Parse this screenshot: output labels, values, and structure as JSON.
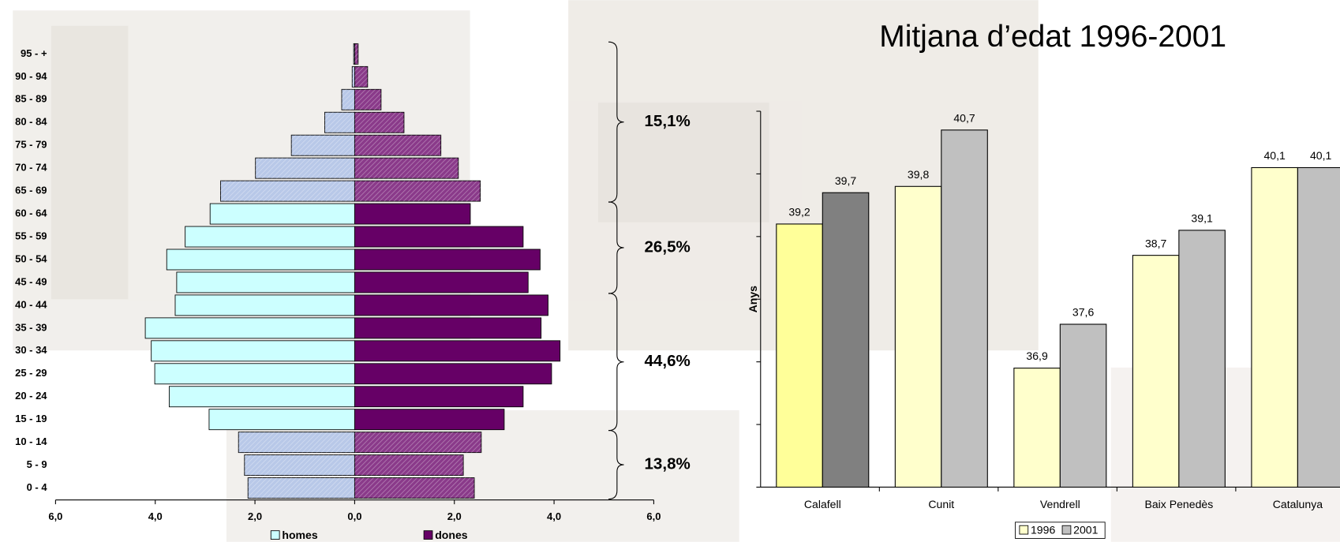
{
  "chart_data": [
    {
      "type": "pyramid",
      "categories": [
        "0 - 4",
        "5 - 9",
        "10 - 14",
        "15 - 19",
        "20 - 24",
        "25 - 29",
        "30 - 34",
        "35 - 39",
        "40 - 44",
        "45 - 49",
        "50 - 54",
        "55 - 59",
        "60 - 64",
        "65 - 69",
        "70 - 74",
        "75 - 79",
        "80 - 84",
        "85 - 89",
        "90 - 94",
        "95 - +"
      ],
      "series": [
        {
          "name": "homes",
          "color": "#ccffff",
          "colors": [
            "#b8c8e8",
            "#b8c8e8",
            "#b8c8e8",
            "#ccffff",
            "#ccffff",
            "#ccffff",
            "#ccffff",
            "#ccffff",
            "#ccffff",
            "#ccffff",
            "#ccffff",
            "#ccffff",
            "#ccffff",
            "#b8c8e8",
            "#b8c8e8",
            "#b8c8e8",
            "#b8c8e8",
            "#b8c8e8",
            "#b8c8e8",
            "#b8c8e8"
          ],
          "values": [
            -2.14,
            -2.21,
            -2.33,
            -2.92,
            -3.72,
            -4.01,
            -4.08,
            -4.2,
            -3.6,
            -3.57,
            -3.77,
            -3.4,
            -2.9,
            -2.69,
            -1.99,
            -1.27,
            -0.6,
            -0.26,
            -0.05,
            -0.02
          ]
        },
        {
          "name": "dones",
          "color": "#660066",
          "colors": [
            "#8a3a8a",
            "#8a3a8a",
            "#8a3a8a",
            "#660066",
            "#660066",
            "#660066",
            "#660066",
            "#660066",
            "#660066",
            "#660066",
            "#660066",
            "#660066",
            "#660066",
            "#8a3a8a",
            "#8a3a8a",
            "#8a3a8a",
            "#8a3a8a",
            "#8a3a8a",
            "#8a3a8a",
            "#8a3a8a"
          ],
          "values": [
            2.4,
            2.18,
            2.54,
            3.0,
            3.38,
            3.95,
            4.12,
            3.74,
            3.88,
            3.48,
            3.72,
            3.38,
            2.32,
            2.52,
            2.08,
            1.73,
            0.99,
            0.53,
            0.26,
            0.07
          ]
        }
      ],
      "xlim": [
        -6,
        6
      ],
      "xticks": [
        {
          "value": -6,
          "label": "6,0"
        },
        {
          "value": -4,
          "label": "4,0"
        },
        {
          "value": -2,
          "label": "2,0"
        },
        {
          "value": 0,
          "label": "0,0"
        },
        {
          "value": 2,
          "label": "2,0"
        },
        {
          "value": 4,
          "label": "4,0"
        },
        {
          "value": 6,
          "label": "6,0"
        }
      ],
      "annotations": [
        "15,1%",
        "26,5%",
        "44,6%",
        "13,8%"
      ]
    },
    {
      "type": "bar",
      "title": "Mitjana d’edat 1996-2001",
      "y_label": "Anys",
      "categories": [
        "Calafell",
        "Cunit",
        "Vendrell",
        "Baix Penedès",
        "Catalunya"
      ],
      "series": [
        {
          "name": "1996",
          "color": "#ffffcc",
          "colors": [
            "#ffff99",
            "#ffffcc",
            "#ffffcc",
            "#ffffcc",
            "#ffffcc"
          ],
          "values": [
            39.2,
            39.8,
            36.9,
            38.7,
            40.1
          ],
          "value_labels": [
            "39,2",
            "39,8",
            "36,9",
            "38,7",
            "40,1"
          ]
        },
        {
          "name": "2001",
          "color": "#c0c0c0",
          "colors": [
            "#808080",
            "#c0c0c0",
            "#c0c0c0",
            "#c0c0c0",
            "#c0c0c0"
          ],
          "values": [
            39.7,
            40.7,
            37.6,
            39.1,
            40.1
          ],
          "value_labels": [
            "39,7",
            "40,7",
            "37,6",
            "39,1",
            "40,1"
          ]
        }
      ],
      "ylim": [
        35,
        41
      ],
      "yticks": [
        35,
        36,
        37,
        38,
        39,
        40,
        41
      ]
    }
  ]
}
